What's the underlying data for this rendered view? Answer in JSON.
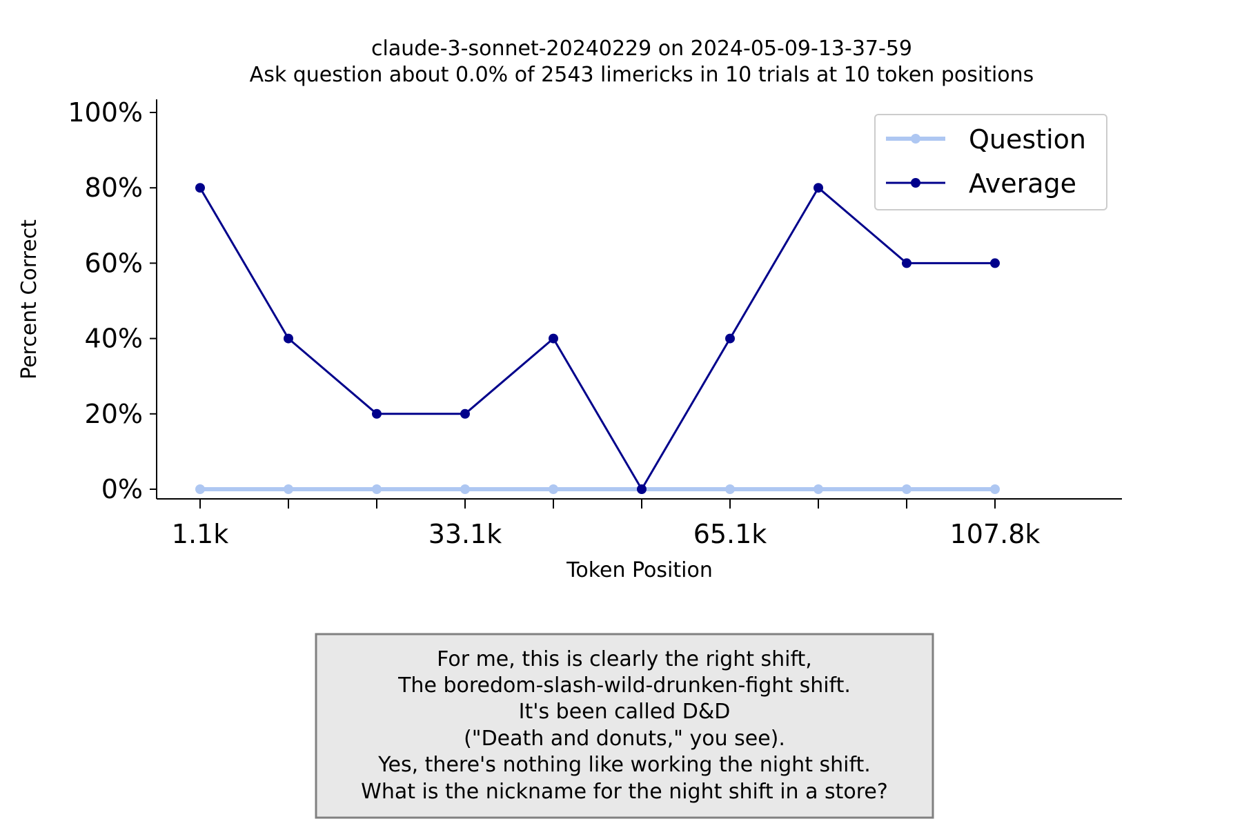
{
  "chart_data": {
    "type": "line",
    "title": "claude-3-sonnet-20240229 on 2024-05-09-13-37-59",
    "subtitle": "Ask question about 0.0% of 2543 limericks in 10 trials at 10 token positions",
    "xlabel": "Token Position",
    "ylabel": "Percent Correct",
    "x_tick_labels": [
      "1.1k",
      "",
      "",
      "33.1k",
      "",
      "",
      "65.1k",
      "",
      "",
      "107.8k"
    ],
    "y_tick_labels": [
      "0%",
      "20%",
      "40%",
      "60%",
      "80%",
      "100%"
    ],
    "ylim": [
      0,
      100
    ],
    "grid": false,
    "legend_position": "top-right",
    "series": [
      {
        "name": "Question",
        "color": "#aec7f2",
        "values": [
          0,
          0,
          0,
          0,
          0,
          0,
          0,
          0,
          0,
          0
        ]
      },
      {
        "name": "Average",
        "color": "#00008b",
        "values": [
          80,
          40,
          20,
          20,
          40,
          0,
          40,
          80,
          60,
          60
        ]
      }
    ]
  },
  "annotation_lines": [
    "For me, this is clearly the right shift,",
    "The boredom-slash-wild-drunken-fight shift.",
    "It's been called D&D",
    "(\"Death and donuts,\" you see).",
    "Yes, there's nothing like working the night shift.",
    "What is the nickname for the night shift in a store?"
  ]
}
